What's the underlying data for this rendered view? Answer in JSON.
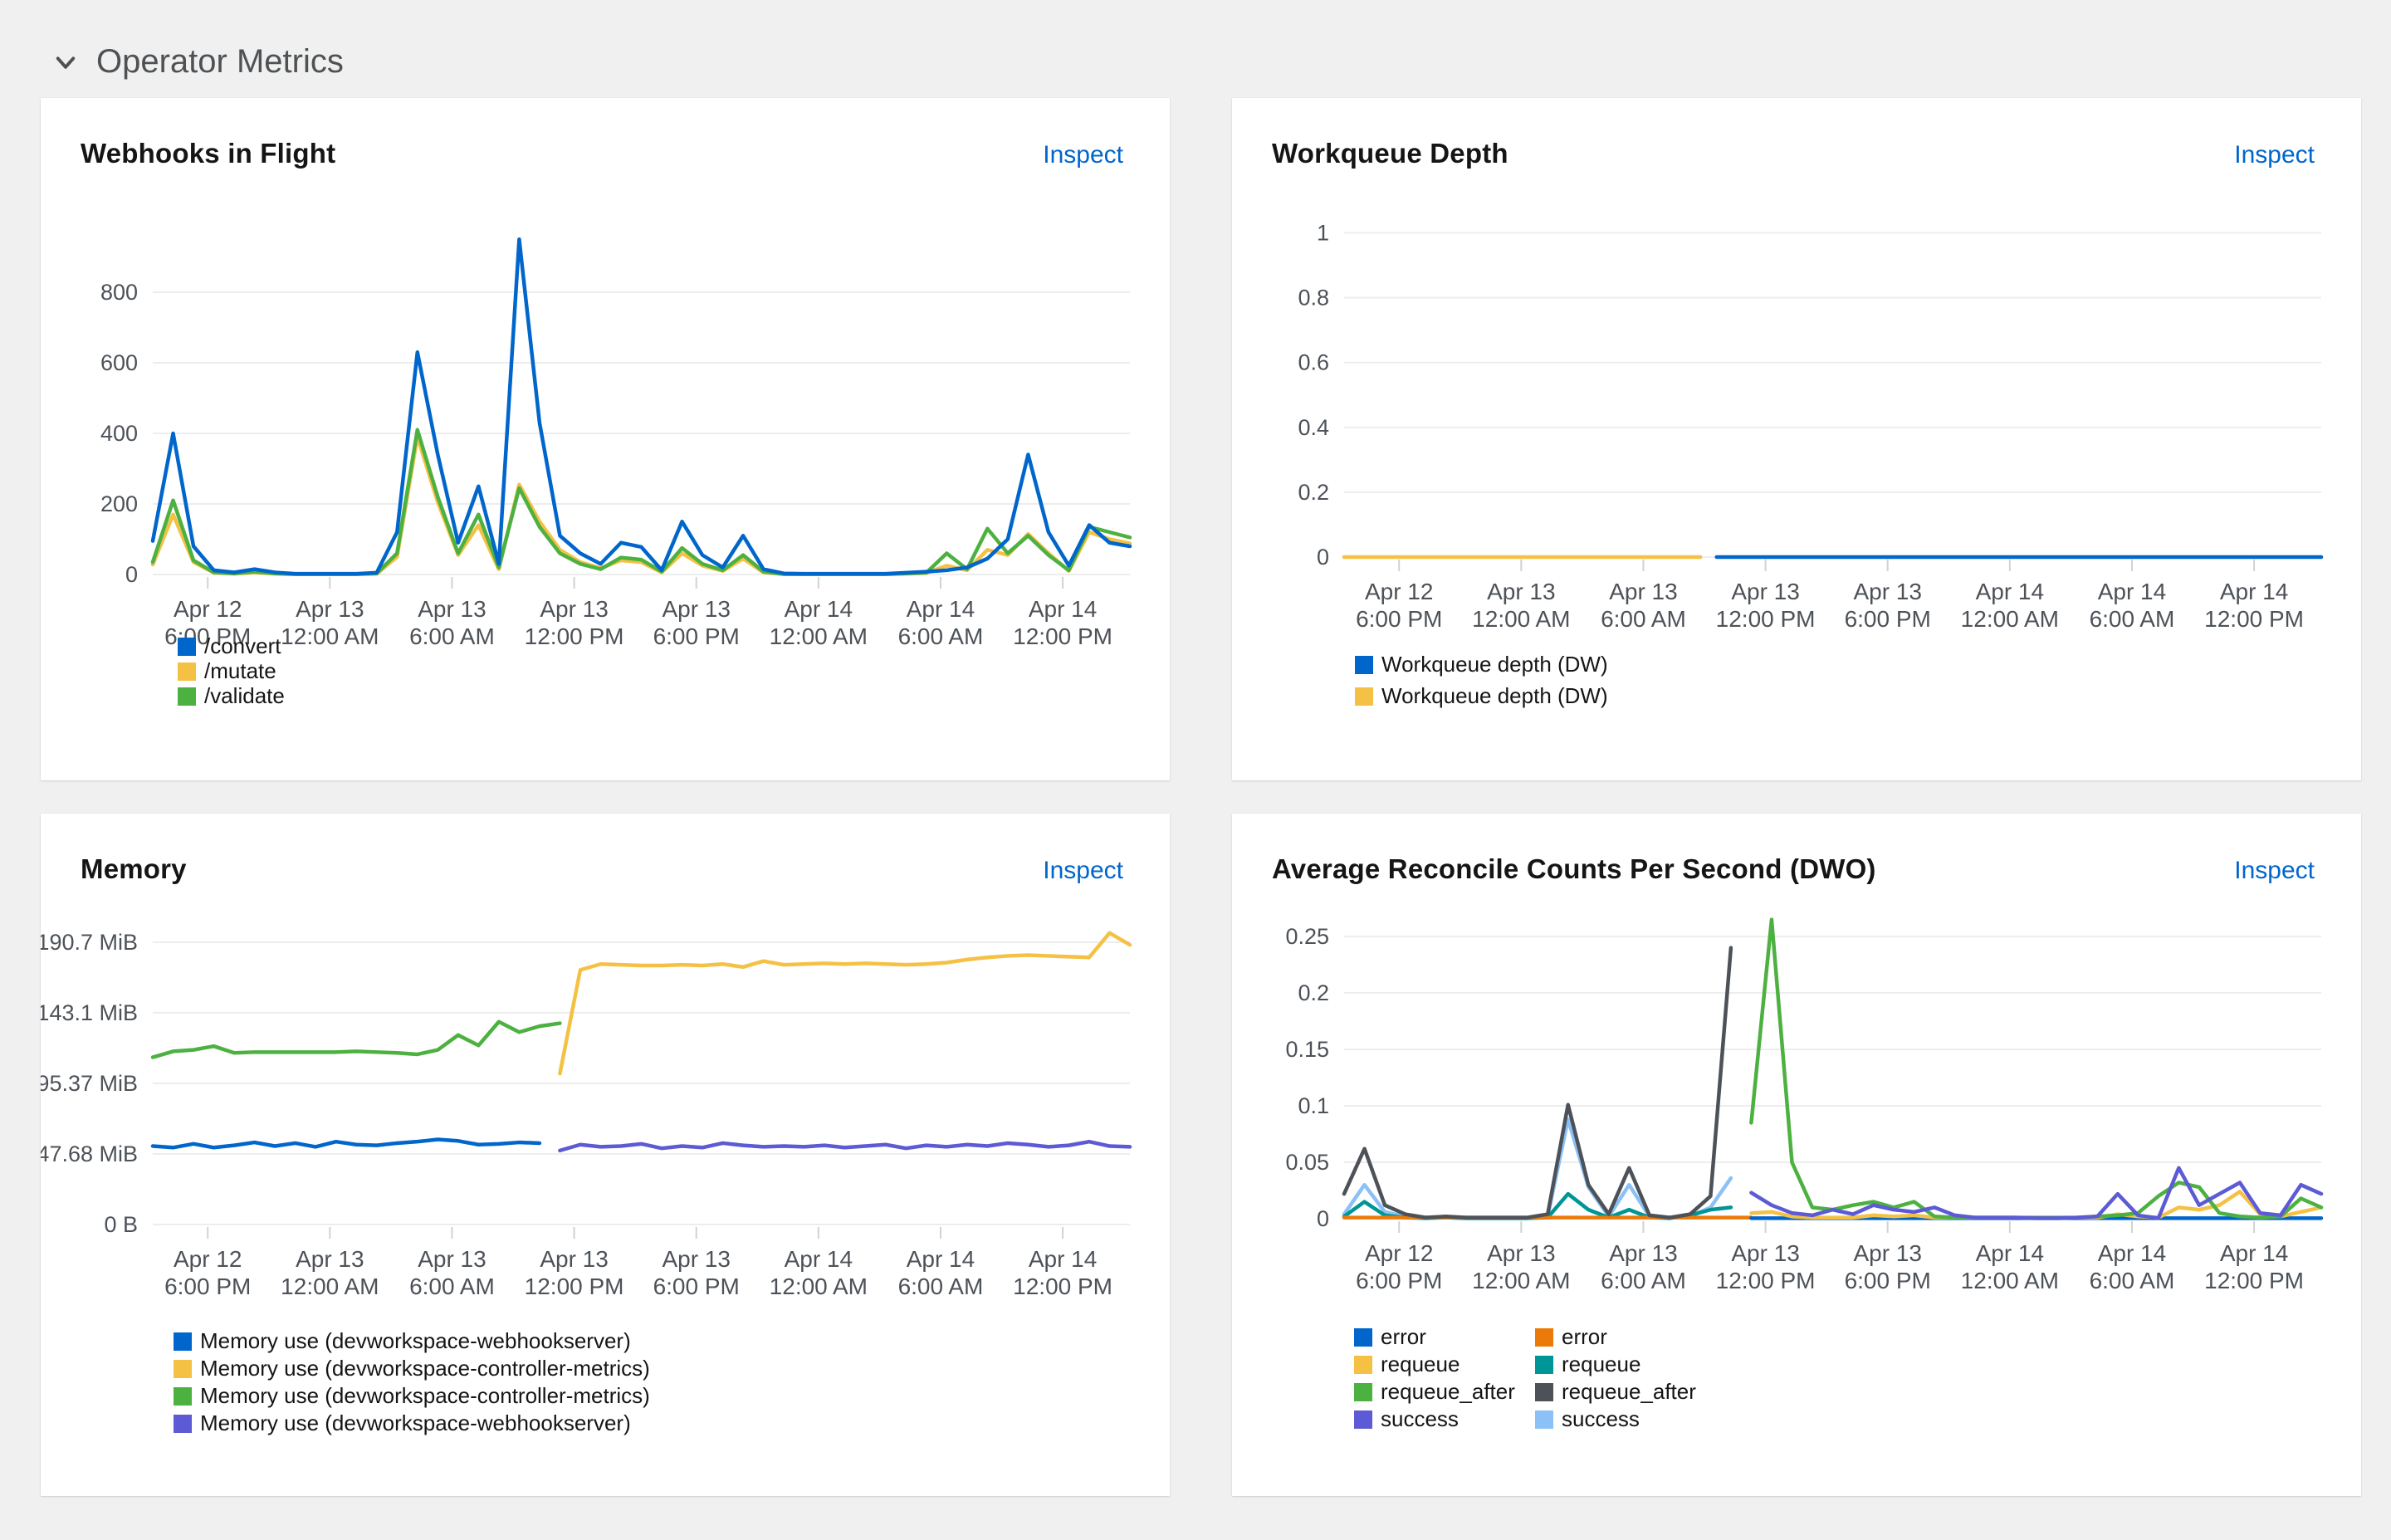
{
  "page": {
    "section_title": "Operator Metrics"
  },
  "ui": {
    "inspect_label": "Inspect"
  },
  "chart_data": [
    {
      "type": "line",
      "title": "Webhooks in Flight",
      "xlabel": "",
      "ylabel": "",
      "x_unit": "hours since Apr 12 3:30 PM",
      "xlim": [
        0,
        48
      ],
      "ylim": [
        0,
        1000
      ],
      "grid": true,
      "x_tick_positions": [
        2.7,
        8.7,
        14.7,
        20.7,
        26.7,
        32.7,
        38.7,
        44.7
      ],
      "x_tick_labels": [
        [
          "Apr 12",
          "6:00 PM"
        ],
        [
          "Apr 13",
          "12:00 AM"
        ],
        [
          "Apr 13",
          "6:00 AM"
        ],
        [
          "Apr 13",
          "12:00 PM"
        ],
        [
          "Apr 13",
          "6:00 PM"
        ],
        [
          "Apr 14",
          "12:00 AM"
        ],
        [
          "Apr 14",
          "6:00 AM"
        ],
        [
          "Apr 14",
          "12:00 PM"
        ]
      ],
      "y_ticks": [
        {
          "value": 0,
          "label": "0"
        },
        {
          "value": 200,
          "label": "200"
        },
        {
          "value": 400,
          "label": "400"
        },
        {
          "value": 600,
          "label": "600"
        },
        {
          "value": 800,
          "label": "800"
        }
      ],
      "series": [
        {
          "name": "/mutate",
          "color": "#f4c145",
          "t_start": 0,
          "step": 1,
          "values": [
            28,
            170,
            35,
            5,
            2,
            6,
            2,
            1,
            1,
            1,
            1,
            2,
            50,
            390,
            205,
            55,
            140,
            15,
            255,
            150,
            70,
            35,
            18,
            40,
            35,
            6,
            60,
            25,
            10,
            45,
            6,
            1,
            1,
            1,
            1,
            1,
            1,
            2,
            4,
            25,
            12,
            70,
            55,
            115,
            60,
            10,
            120,
            100,
            88
          ]
        },
        {
          "name": "/validate",
          "color": "#4cb140",
          "t_start": 0,
          "step": 1,
          "values": [
            35,
            210,
            40,
            6,
            3,
            8,
            3,
            1,
            1,
            1,
            1,
            3,
            60,
            410,
            220,
            60,
            170,
            20,
            245,
            135,
            60,
            30,
            15,
            48,
            42,
            8,
            75,
            30,
            12,
            55,
            8,
            1,
            1,
            1,
            1,
            1,
            1,
            3,
            5,
            60,
            15,
            130,
            60,
            110,
            55,
            12,
            135,
            120,
            105
          ]
        },
        {
          "name": "/convert",
          "color": "#0066cc",
          "t_start": 0,
          "step": 1,
          "values": [
            95,
            400,
            80,
            12,
            6,
            15,
            6,
            2,
            2,
            2,
            2,
            5,
            120,
            630,
            340,
            90,
            250,
            30,
            950,
            430,
            110,
            60,
            30,
            90,
            78,
            12,
            150,
            55,
            20,
            110,
            15,
            3,
            2,
            2,
            2,
            2,
            2,
            5,
            8,
            12,
            20,
            45,
            100,
            340,
            120,
            25,
            140,
            90,
            80
          ]
        }
      ],
      "legend": [
        [
          {
            "label": "/convert",
            "color": "#0066cc"
          },
          {
            "label": "/mutate",
            "color": "#f4c145"
          },
          {
            "label": "/validate",
            "color": "#4cb140"
          }
        ]
      ],
      "legend_position": "bottom-left"
    },
    {
      "type": "line",
      "title": "Workqueue Depth",
      "xlabel": "",
      "ylabel": "",
      "x_unit": "hours since Apr 12 3:30 PM",
      "xlim": [
        0,
        48
      ],
      "ylim": [
        0,
        1.05
      ],
      "grid": true,
      "x_tick_positions": [
        2.7,
        8.7,
        14.7,
        20.7,
        26.7,
        32.7,
        38.7,
        44.7
      ],
      "x_tick_labels": [
        [
          "Apr 12",
          "6:00 PM"
        ],
        [
          "Apr 13",
          "12:00 AM"
        ],
        [
          "Apr 13",
          "6:00 AM"
        ],
        [
          "Apr 13",
          "12:00 PM"
        ],
        [
          "Apr 13",
          "6:00 PM"
        ],
        [
          "Apr 14",
          "12:00 AM"
        ],
        [
          "Apr 14",
          "6:00 AM"
        ],
        [
          "Apr 14",
          "12:00 PM"
        ]
      ],
      "y_ticks": [
        {
          "value": 0,
          "label": "0"
        },
        {
          "value": 0.2,
          "label": "0.2"
        },
        {
          "value": 0.4,
          "label": "0.4"
        },
        {
          "value": 0.6,
          "label": "0.6"
        },
        {
          "value": 0.8,
          "label": "0.8"
        },
        {
          "value": 1,
          "label": "1"
        }
      ],
      "series": [
        {
          "name": "Workqueue depth (DW)",
          "color": "#f4c145",
          "x": [
            0,
            17.5
          ],
          "y": [
            0,
            0
          ]
        },
        {
          "name": "Workqueue depth (DW)",
          "color": "#0066cc",
          "x": [
            18.3,
            48
          ],
          "y": [
            0,
            0
          ]
        }
      ],
      "legend": [
        [
          {
            "label": "Workqueue depth (DW)",
            "color": "#0066cc"
          },
          {
            "label": "Workqueue depth (DW)",
            "color": "#f4c145"
          }
        ]
      ],
      "legend_position": "bottom-left"
    },
    {
      "type": "line",
      "title": "Memory",
      "xlabel": "",
      "ylabel": "MiB",
      "x_unit": "hours since Apr 12 3:30 PM",
      "xlim": [
        0,
        48
      ],
      "ylim": [
        0,
        238.4
      ],
      "grid": true,
      "x_tick_positions": [
        2.7,
        8.7,
        14.7,
        20.7,
        26.7,
        32.7,
        38.7,
        44.7
      ],
      "x_tick_labels": [
        [
          "Apr 12",
          "6:00 PM"
        ],
        [
          "Apr 13",
          "12:00 AM"
        ],
        [
          "Apr 13",
          "6:00 AM"
        ],
        [
          "Apr 13",
          "12:00 PM"
        ],
        [
          "Apr 13",
          "6:00 PM"
        ],
        [
          "Apr 14",
          "12:00 AM"
        ],
        [
          "Apr 14",
          "6:00 AM"
        ],
        [
          "Apr 14",
          "12:00 PM"
        ]
      ],
      "y_ticks": [
        {
          "value": 0,
          "label": "0 B"
        },
        {
          "value": 47.68,
          "label": "47.68 MiB"
        },
        {
          "value": 95.37,
          "label": "95.37 MiB"
        },
        {
          "value": 143.1,
          "label": "143.1 MiB"
        },
        {
          "value": 190.7,
          "label": "190.7 MiB"
        }
      ],
      "series": [
        {
          "name": "Memory use (devworkspace-webhookserver)",
          "color": "#0066cc",
          "t_start": 0,
          "step": 1,
          "values": [
            53,
            52,
            54.5,
            52,
            53.5,
            55.5,
            53,
            55,
            52.5,
            56,
            54,
            53.5,
            55,
            56,
            57.5,
            56.5,
            54,
            54.5,
            55.5,
            55
          ]
        },
        {
          "name": "Memory use (devworkspace-controller-metrics)",
          "color": "#4cb140",
          "t_start": 0,
          "step": 1,
          "values": [
            113,
            117,
            118,
            120.5,
            116,
            116.5,
            116.5,
            116.5,
            116.5,
            116.5,
            117,
            116.5,
            116,
            115,
            118,
            128,
            121,
            137,
            130,
            134,
            136
          ]
        },
        {
          "name": "Memory use (devworkspace-controller-metrics)",
          "color": "#f4c145",
          "t_start": 20,
          "step": 1,
          "values": [
            102,
            172,
            176,
            175.5,
            175,
            175,
            175.5,
            175,
            176,
            174,
            178,
            175.5,
            176,
            176.5,
            176,
            176.5,
            176,
            175.5,
            176,
            177,
            179,
            180.5,
            181.5,
            182,
            181.5,
            181,
            180.5,
            197,
            189
          ]
        },
        {
          "name": "Memory use (devworkspace-webhookserver)",
          "color": "#5c5ad4",
          "t_start": 20,
          "step": 1,
          "values": [
            50,
            54,
            52.5,
            53,
            54.5,
            51.5,
            53,
            52,
            55,
            53.5,
            52.5,
            53,
            52.5,
            53.5,
            52,
            53,
            54,
            51.5,
            53.5,
            52.5,
            54,
            53,
            55,
            54,
            52.5,
            53.5,
            56,
            53,
            52.5
          ]
        }
      ],
      "legend": [
        [
          {
            "label": "Memory use (devworkspace-webhookserver)",
            "color": "#0066cc"
          },
          {
            "label": "Memory use (devworkspace-controller-metrics)",
            "color": "#f4c145"
          },
          {
            "label": "Memory use (devworkspace-controller-metrics)",
            "color": "#4cb140"
          },
          {
            "label": "Memory use (devworkspace-webhookserver)",
            "color": "#5c5ad4"
          }
        ]
      ],
      "legend_position": "bottom-left"
    },
    {
      "type": "line",
      "title": "Average Reconcile Counts Per Second (DWO)",
      "xlabel": "",
      "ylabel": "",
      "x_unit": "hours since Apr 12 3:30 PM",
      "xlim": [
        0,
        48
      ],
      "ylim": [
        0,
        0.278
      ],
      "grid": true,
      "x_tick_positions": [
        2.7,
        8.7,
        14.7,
        20.7,
        26.7,
        32.7,
        38.7,
        44.7
      ],
      "x_tick_labels": [
        [
          "Apr 12",
          "6:00 PM"
        ],
        [
          "Apr 13",
          "12:00 AM"
        ],
        [
          "Apr 13",
          "6:00 AM"
        ],
        [
          "Apr 13",
          "12:00 PM"
        ],
        [
          "Apr 13",
          "6:00 PM"
        ],
        [
          "Apr 14",
          "12:00 AM"
        ],
        [
          "Apr 14",
          "6:00 AM"
        ],
        [
          "Apr 14",
          "12:00 PM"
        ]
      ],
      "y_ticks": [
        {
          "value": 0,
          "label": "0"
        },
        {
          "value": 0.05,
          "label": "0.05"
        },
        {
          "value": 0.1,
          "label": "0.1"
        },
        {
          "value": 0.15,
          "label": "0.15"
        },
        {
          "value": 0.2,
          "label": "0.2"
        },
        {
          "value": 0.25,
          "label": "0.25"
        }
      ],
      "series": [
        {
          "name": "success",
          "color": "#8bc1f7",
          "t_start": 0,
          "step": 1,
          "values": [
            0.004,
            0.03,
            0.006,
            0.002,
            0.001,
            0.001,
            0.0005,
            0.0005,
            0.0005,
            0.0005,
            0.002,
            0.088,
            0.028,
            0.002,
            0.03,
            0.002,
            0.0005,
            0.002,
            0.01,
            0.036
          ]
        },
        {
          "name": "requeue",
          "color": "#009596",
          "t_start": 0,
          "step": 1,
          "values": [
            0.002,
            0.015,
            0.003,
            0.001,
            0.0005,
            0.001,
            0.0005,
            0.0005,
            0.0005,
            0.0005,
            0.001,
            0.022,
            0.008,
            0.001,
            0.008,
            0.001,
            0.0005,
            0.003,
            0.008,
            0.01
          ]
        },
        {
          "name": "error",
          "color": "#ec7a08",
          "t_start": 0,
          "step": 1,
          "values": [
            0.001,
            0.001,
            0.001,
            0.001,
            0.001,
            0.001,
            0.001,
            0.001,
            0.001,
            0.001,
            0.001,
            0.001,
            0.001,
            0.001,
            0.001,
            0.001,
            0.001,
            0.001,
            0.001,
            0.001,
            0.001
          ]
        },
        {
          "name": "requeue_after",
          "color": "#4d5258",
          "t_start": 0,
          "step": 1,
          "values": [
            0.022,
            0.062,
            0.012,
            0.004,
            0.001,
            0.002,
            0.001,
            0.001,
            0.001,
            0.001,
            0.004,
            0.101,
            0.03,
            0.004,
            0.045,
            0.003,
            0.001,
            0.004,
            0.02,
            0.24
          ]
        },
        {
          "name": "error",
          "color": "#0066cc",
          "t_start": 20,
          "step": 1,
          "values": [
            0.0005,
            0.0005,
            0.0005,
            0.0005,
            0.0005,
            0.0005,
            0.0005,
            0.0005,
            0.0005,
            0.0005,
            0.0005,
            0.0005,
            0.0005,
            0.0005,
            0.0005,
            0.0005,
            0.0005,
            0.0005,
            0.0005,
            0.0005,
            0.0005,
            0.0005,
            0.0005,
            0.0005,
            0.0005,
            0.0005,
            0.0005,
            0.0005,
            0.0005
          ]
        },
        {
          "name": "requeue",
          "color": "#f4c145",
          "t_start": 20,
          "step": 1,
          "values": [
            0.005,
            0.006,
            0.002,
            0.001,
            0.001,
            0.001,
            0.003,
            0.002,
            0.003,
            0.001,
            0.001,
            0.001,
            0.001,
            0.001,
            0.0005,
            0.0005,
            0.001,
            0.001,
            0.004,
            0.002,
            0.001,
            0.01,
            0.008,
            0.012,
            0.024,
            0.004,
            0.002,
            0.006,
            0.01
          ]
        },
        {
          "name": "requeue_after",
          "color": "#4cb140",
          "t_start": 20,
          "step": 1,
          "values": [
            0.085,
            0.265,
            0.05,
            0.01,
            0.008,
            0.012,
            0.015,
            0.01,
            0.015,
            0.002,
            0.001,
            0.001,
            0.001,
            0.001,
            0.001,
            0.001,
            0.001,
            0.002,
            0.003,
            0.005,
            0.02,
            0.032,
            0.028,
            0.005,
            0.002,
            0.001,
            0.002,
            0.018,
            0.01
          ]
        },
        {
          "name": "success",
          "color": "#5c5ad4",
          "t_start": 20,
          "step": 1,
          "values": [
            0.023,
            0.012,
            0.005,
            0.003,
            0.008,
            0.004,
            0.012,
            0.008,
            0.006,
            0.01,
            0.003,
            0.001,
            0.001,
            0.001,
            0.0005,
            0.0005,
            0.001,
            0.002,
            0.022,
            0.003,
            0.0005,
            0.045,
            0.012,
            0.022,
            0.032,
            0.005,
            0.003,
            0.03,
            0.022
          ]
        }
      ],
      "legend": [
        [
          {
            "label": "error",
            "color": "#0066cc"
          },
          {
            "label": "requeue",
            "color": "#f4c145"
          },
          {
            "label": "requeue_after",
            "color": "#4cb140"
          },
          {
            "label": "success",
            "color": "#5c5ad4"
          }
        ],
        [
          {
            "label": "error",
            "color": "#ec7a08"
          },
          {
            "label": "requeue",
            "color": "#009596"
          },
          {
            "label": "requeue_after",
            "color": "#4d5258"
          },
          {
            "label": "success",
            "color": "#8bc1f7"
          }
        ]
      ],
      "legend_position": "bottom-left"
    }
  ]
}
